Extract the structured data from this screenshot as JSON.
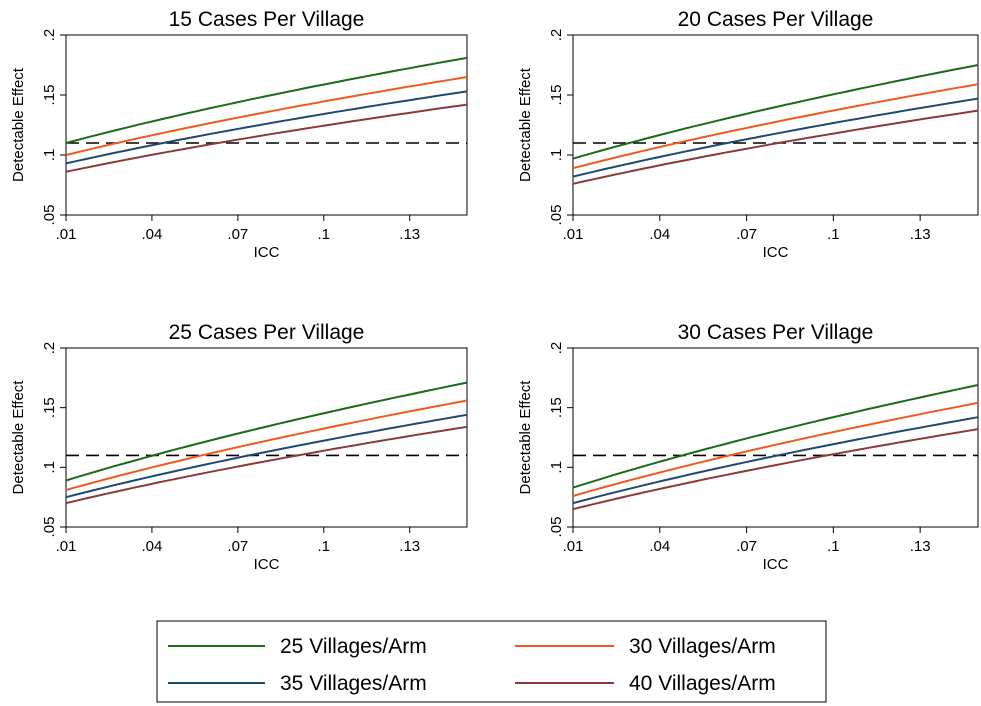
{
  "chart_data": [
    {
      "type": "line",
      "title": "15 Cases Per Village",
      "xlabel": "ICC",
      "ylabel": "Detectable Effect",
      "xlim": [
        0.01,
        0.15
      ],
      "ylim": [
        0.05,
        0.2
      ],
      "xticks": [
        ".01",
        ".04",
        ".07",
        ".1",
        ".13"
      ],
      "yticks": [
        ".05",
        ".1",
        ".15",
        ".2"
      ],
      "reference_line": 0.11,
      "x": [
        0.01,
        0.15
      ],
      "series": [
        {
          "name": "25 Villages/Arm",
          "start": 0.11,
          "end": 0.181
        },
        {
          "name": "30 Villages/Arm",
          "start": 0.1,
          "end": 0.165
        },
        {
          "name": "35 Villages/Arm",
          "start": 0.093,
          "end": 0.153
        },
        {
          "name": "40 Villages/Arm",
          "start": 0.086,
          "end": 0.142
        }
      ]
    },
    {
      "type": "line",
      "title": "20 Cases Per Village",
      "xlabel": "ICC",
      "ylabel": "Detectable Effect",
      "xlim": [
        0.01,
        0.15
      ],
      "ylim": [
        0.05,
        0.2
      ],
      "xticks": [
        ".01",
        ".04",
        ".07",
        ".1",
        ".13"
      ],
      "yticks": [
        ".05",
        ".1",
        ".15",
        ".2"
      ],
      "reference_line": 0.11,
      "x": [
        0.01,
        0.15
      ],
      "series": [
        {
          "name": "25 Villages/Arm",
          "start": 0.097,
          "end": 0.175
        },
        {
          "name": "30 Villages/Arm",
          "start": 0.089,
          "end": 0.159
        },
        {
          "name": "35 Villages/Arm",
          "start": 0.082,
          "end": 0.147
        },
        {
          "name": "40 Villages/Arm",
          "start": 0.076,
          "end": 0.137
        }
      ]
    },
    {
      "type": "line",
      "title": "25 Cases Per Village",
      "xlabel": "ICC",
      "ylabel": "Detectable Effect",
      "xlim": [
        0.01,
        0.15
      ],
      "ylim": [
        0.05,
        0.2
      ],
      "xticks": [
        ".01",
        ".04",
        ".07",
        ".1",
        ".13"
      ],
      "yticks": [
        ".05",
        ".1",
        ".15",
        ".2"
      ],
      "reference_line": 0.11,
      "x": [
        0.01,
        0.15
      ],
      "series": [
        {
          "name": "25 Villages/Arm",
          "start": 0.089,
          "end": 0.171
        },
        {
          "name": "30 Villages/Arm",
          "start": 0.081,
          "end": 0.156
        },
        {
          "name": "35 Villages/Arm",
          "start": 0.075,
          "end": 0.144
        },
        {
          "name": "40 Villages/Arm",
          "start": 0.07,
          "end": 0.134
        }
      ]
    },
    {
      "type": "line",
      "title": "30 Cases Per Village",
      "xlabel": "ICC",
      "ylabel": "Detectable Effect",
      "xlim": [
        0.01,
        0.15
      ],
      "ylim": [
        0.05,
        0.2
      ],
      "xticks": [
        ".01",
        ".04",
        ".07",
        ".1",
        ".13"
      ],
      "yticks": [
        ".05",
        ".1",
        ".15",
        ".2"
      ],
      "reference_line": 0.11,
      "x": [
        0.01,
        0.15
      ],
      "series": [
        {
          "name": "25 Villages/Arm",
          "start": 0.083,
          "end": 0.169
        },
        {
          "name": "30 Villages/Arm",
          "start": 0.076,
          "end": 0.154
        },
        {
          "name": "35 Villages/Arm",
          "start": 0.07,
          "end": 0.142
        },
        {
          "name": "40 Villages/Arm",
          "start": 0.065,
          "end": 0.132
        }
      ]
    }
  ],
  "legend": {
    "placement": "bottom-center",
    "items": [
      {
        "name": "25 Villages/Arm",
        "color": "#1a6b1a"
      },
      {
        "name": "30 Villages/Arm",
        "color": "#f05a1e"
      },
      {
        "name": "35 Villages/Arm",
        "color": "#1f4a70"
      },
      {
        "name": "40 Villages/Arm",
        "color": "#8b3a3a"
      }
    ]
  },
  "colors": {
    "series": [
      "#1a6b1a",
      "#f05a1e",
      "#1f4a70",
      "#8b3a3a"
    ],
    "reference_line": "#000000"
  }
}
